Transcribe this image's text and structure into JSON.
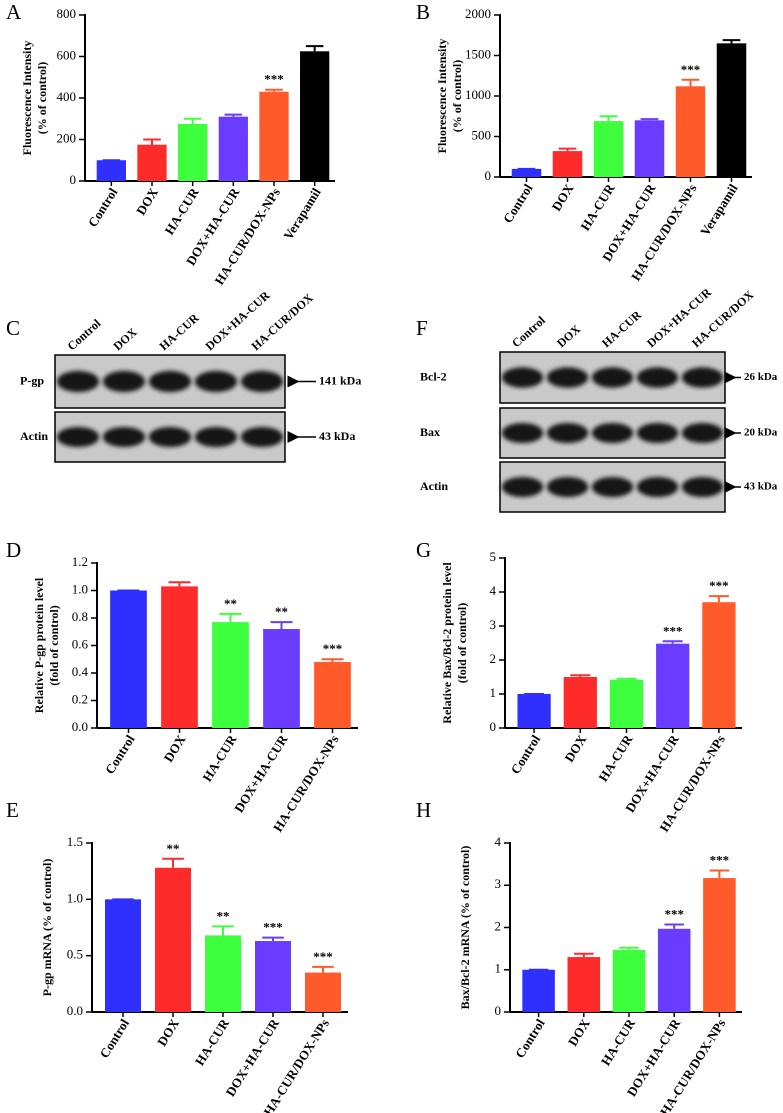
{
  "chart_data": [
    {
      "type": "bar",
      "label": "A",
      "ylabel": [
        "Fluorescence Intensity",
        "(% of control)"
      ],
      "categories": [
        "Control",
        "DOX",
        "HA-CUR",
        "DOX+HA-CUR",
        "HA-CUR/DOX-NPs",
        "Verapamil"
      ],
      "values": [
        100,
        175,
        275,
        310,
        430,
        625
      ],
      "errors": [
        0,
        25,
        25,
        10,
        10,
        25
      ],
      "significance": [
        null,
        null,
        null,
        null,
        "***",
        null
      ],
      "colors": [
        "#2f2fff",
        "#ff2a2a",
        "#3dff3d",
        "#6a3cff",
        "#ff5a2a",
        "#000000"
      ],
      "ylim": [
        0,
        800
      ],
      "yticks": [
        0,
        200,
        400,
        600,
        800
      ]
    },
    {
      "type": "bar",
      "label": "B",
      "ylabel": [
        "Fluorescence Intensity",
        "(% of control)"
      ],
      "categories": [
        "Control",
        "DOX",
        "HA-CUR",
        "DOX+HA-CUR",
        "HA-CUR/DOX-NPs",
        "Verapamil"
      ],
      "values": [
        100,
        320,
        690,
        700,
        1120,
        1650
      ],
      "errors": [
        0,
        30,
        60,
        15,
        80,
        40
      ],
      "significance": [
        null,
        null,
        null,
        null,
        "***",
        null
      ],
      "colors": [
        "#2f2fff",
        "#ff2a2a",
        "#3dff3d",
        "#6a3cff",
        "#ff5a2a",
        "#000000"
      ],
      "ylim": [
        0,
        2000
      ],
      "yticks": [
        0,
        500,
        1000,
        1500,
        2000
      ]
    },
    {
      "type": "bar",
      "label": "D",
      "ylabel": [
        "Relative P-gp protein level",
        "(fold of control)"
      ],
      "categories": [
        "Control",
        "DOX",
        "HA-CUR",
        "DOX+HA-CUR",
        "HA-CUR/DOX-NPs"
      ],
      "values": [
        1.0,
        1.03,
        0.77,
        0.72,
        0.48
      ],
      "errors": [
        0,
        0.03,
        0.06,
        0.05,
        0.02
      ],
      "significance": [
        null,
        null,
        "**",
        "**",
        "***"
      ],
      "colors": [
        "#2f2fff",
        "#ff2a2a",
        "#3dff3d",
        "#6a3cff",
        "#ff5a2a"
      ],
      "ylim": [
        0,
        1.2
      ],
      "yticks": [
        {
          "value": 0,
          "label": "0.0"
        },
        0.2,
        0.4,
        0.6,
        0.8,
        {
          "value": 1,
          "label": "1.0"
        },
        1.2
      ]
    },
    {
      "type": "bar",
      "label": "G",
      "ylabel": [
        "Relative Bax/Bcl-2 protein level",
        "(fold of control)"
      ],
      "categories": [
        "Control",
        "DOX",
        "HA-CUR",
        "DOX+HA-CUR",
        "HA-CUR/DOX-NPs"
      ],
      "values": [
        1.0,
        1.5,
        1.42,
        2.48,
        3.7
      ],
      "errors": [
        0,
        0.05,
        0.03,
        0.07,
        0.18
      ],
      "significance": [
        null,
        null,
        null,
        "***",
        "***"
      ],
      "colors": [
        "#2f2fff",
        "#ff2a2a",
        "#3dff3d",
        "#6a3cff",
        "#ff5a2a"
      ],
      "ylim": [
        0,
        5
      ],
      "yticks": [
        0,
        1,
        2,
        3,
        4,
        5
      ]
    },
    {
      "type": "bar",
      "label": "E",
      "ylabel": [
        "P-gp mRNA (% of control)"
      ],
      "categories": [
        "Control",
        "DOX",
        "HA-CUR",
        "DOX+HA-CUR",
        "HA-CUR/DOX-NPs"
      ],
      "values": [
        1.0,
        1.28,
        0.68,
        0.63,
        0.35
      ],
      "errors": [
        0,
        0.08,
        0.08,
        0.03,
        0.05
      ],
      "significance": [
        null,
        "**",
        "**",
        "***",
        "***"
      ],
      "colors": [
        "#2f2fff",
        "#ff2a2a",
        "#3dff3d",
        "#6a3cff",
        "#ff5a2a"
      ],
      "ylim": [
        0,
        1.5
      ],
      "yticks": [
        {
          "value": 0,
          "label": "0.0"
        },
        0.5,
        {
          "value": 1,
          "label": "1.0"
        },
        1.5
      ]
    },
    {
      "type": "bar",
      "label": "H",
      "ylabel": [
        "Bax/Bcl-2 mRNA (% of control)"
      ],
      "categories": [
        "Control",
        "DOX",
        "HA-CUR",
        "DOX+HA-CUR",
        "HA-CUR/DOX-NPs"
      ],
      "values": [
        1.0,
        1.3,
        1.47,
        1.97,
        3.17
      ],
      "errors": [
        0,
        0.08,
        0.05,
        0.1,
        0.18
      ],
      "significance": [
        null,
        null,
        null,
        "***",
        "***"
      ],
      "colors": [
        "#2f2fff",
        "#ff2a2a",
        "#3dff3d",
        "#6a3cff",
        "#ff5a2a"
      ],
      "ylim": [
        0,
        4
      ],
      "yticks": [
        0,
        1,
        2,
        3,
        4
      ]
    }
  ],
  "blots": [
    {
      "label": "C",
      "lanes": [
        "Control",
        "DOX",
        "HA-CUR",
        "DOX+HA-CUR",
        "HA-CUR/DOX"
      ],
      "rows": [
        {
          "name": "P-gp",
          "size": "141 kDa"
        },
        {
          "name": "Actin",
          "size": "43 kDa"
        }
      ]
    },
    {
      "label": "F",
      "lanes": [
        "Control",
        "DOX",
        "HA-CUR",
        "DOX+HA-CUR",
        "HA-CUR/DOX"
      ],
      "rows": [
        {
          "name": "Bcl-2",
          "size": "26 kDa"
        },
        {
          "name": "Bax",
          "size": "20 kDa"
        },
        {
          "name": "Actin",
          "size": "43 kDa"
        }
      ]
    }
  ]
}
